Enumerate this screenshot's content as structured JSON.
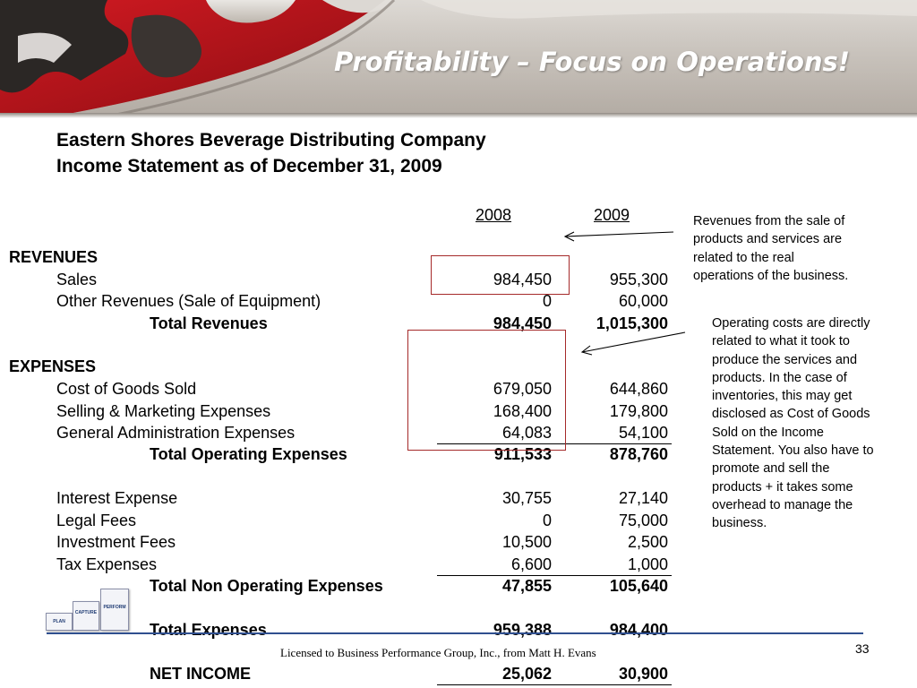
{
  "slide": {
    "title": "Profitability – Focus on Operations!",
    "company": "Eastern Shores Beverage Distributing Company",
    "statement": "Income Statement as of December 31, 2009",
    "page_number": "33",
    "license": "Licensed to Business Performance Group, Inc., from Matt H. Evans"
  },
  "table": {
    "years": [
      "2008",
      "2009"
    ],
    "revenues_label": "REVENUES",
    "expenses_label": "EXPENSES",
    "sales": {
      "label": "Sales",
      "v2008": "984,450",
      "v2009": "955,300"
    },
    "other_revenues": {
      "label": "Other Revenues (Sale of Equipment)",
      "v2008": "0",
      "v2009": "60,000"
    },
    "total_revenues": {
      "label": "Total Revenues",
      "v2008": "984,450",
      "v2009": "1,015,300"
    },
    "cogs": {
      "label": "Cost of Goods Sold",
      "v2008": "679,050",
      "v2009": "644,860"
    },
    "selling": {
      "label": "Selling & Marketing Expenses",
      "v2008": "168,400",
      "v2009": "179,800"
    },
    "admin": {
      "label": "General Administration Expenses",
      "v2008": "64,083",
      "v2009": "54,100"
    },
    "total_operating": {
      "label": "Total Operating Expenses",
      "v2008": "911,533",
      "v2009": "878,760"
    },
    "interest": {
      "label": "Interest Expense",
      "v2008": "30,755",
      "v2009": "27,140"
    },
    "legal": {
      "label": "Legal Fees",
      "v2008": "0",
      "v2009": "75,000"
    },
    "investment": {
      "label": "Investment Fees",
      "v2008": "10,500",
      "v2009": "2,500"
    },
    "tax": {
      "label": "Tax Expenses",
      "v2008": "6,600",
      "v2009": "1,000"
    },
    "total_non_operating": {
      "label": "Total Non Operating Expenses",
      "v2008": "47,855",
      "v2009": "105,640"
    },
    "total_expenses": {
      "label": "Total Expenses",
      "v2008": "959,388",
      "v2009": "984,400"
    },
    "net_income": {
      "label": "NET INCOME",
      "v2008": "25,062",
      "v2009": "30,900"
    }
  },
  "annotations": {
    "revenues": [
      "Revenues from the sale of",
      "products and services are",
      "related to the real",
      "operations of the business."
    ],
    "operating": [
      "Operating costs are directly",
      "related to what it took to",
      "produce the services and",
      "products. In the case of",
      "inventories, this may get",
      "disclosed as Cost of Goods",
      "Sold on the Income",
      "Statement. You also have to",
      "promote and sell the",
      "products + it takes some",
      "overhead to manage the",
      "business."
    ]
  },
  "logo": {
    "steps": [
      "PLAN",
      "CAPTURE",
      "PERFORM"
    ]
  },
  "colors": {
    "highlight_box": "#a52a2a",
    "footer_line": "#2f4f8f",
    "banner_red": "#b0121b"
  }
}
